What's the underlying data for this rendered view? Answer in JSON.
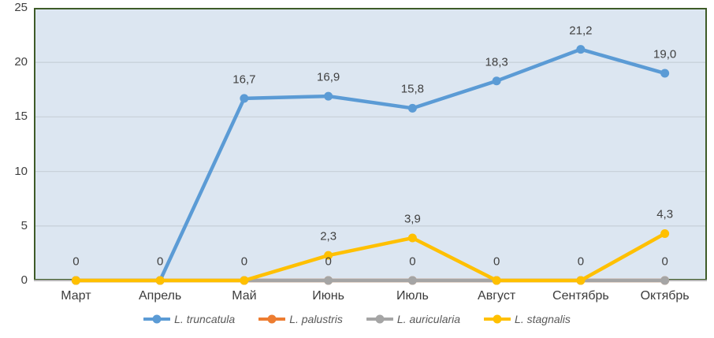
{
  "chart_data": {
    "type": "line",
    "categories": [
      "Март",
      "Апрель",
      "Май",
      "Июнь",
      "Июль",
      "Август",
      "Сентябрь",
      "Октябрь"
    ],
    "series": [
      {
        "name": "L. truncatula",
        "color": "#5b9bd5",
        "values": [
          0,
          0,
          16.7,
          16.9,
          15.8,
          18.3,
          21.2,
          19.0
        ],
        "labels": [
          "",
          "",
          "16,7",
          "16,9",
          "15,8",
          "18,3",
          "21,2",
          "19,0"
        ]
      },
      {
        "name": "L. palustris",
        "color": "#ed7d31",
        "values": [
          0,
          0,
          0,
          0,
          0,
          0,
          0,
          0
        ],
        "labels": [
          "",
          "",
          "",
          "",
          "",
          "",
          "",
          ""
        ]
      },
      {
        "name": "L. auricularia",
        "color": "#a5a5a5",
        "values": [
          0,
          0,
          0,
          0,
          0,
          0,
          0,
          0
        ],
        "labels": [
          "0",
          "0",
          "0",
          "0",
          "0",
          "0",
          "0",
          "0"
        ]
      },
      {
        "name": "L. stagnalis",
        "color": "#ffc000",
        "values": [
          0,
          0,
          0,
          2.3,
          3.9,
          0,
          0,
          4.3
        ],
        "labels": [
          "",
          "",
          "",
          "2,3",
          "3,9",
          "",
          "",
          "4,3"
        ]
      }
    ],
    "title": "",
    "xlabel": "",
    "ylabel": "",
    "ylim": [
      0,
      25
    ],
    "yticks": [
      0,
      5,
      10,
      15,
      20,
      25
    ],
    "ytick_labels": [
      "0",
      "5",
      "10",
      "15",
      "20",
      "25"
    ],
    "grid": true,
    "legend_position": "bottom"
  },
  "colors": {
    "plot_bg": "#dce6f1",
    "plot_border": "#3e5b28",
    "axis_line": "#b6b6b6",
    "gridline": "#c9d2da",
    "tick_text": "#404040",
    "data_label_text": "#404040",
    "legend_text": "#595959"
  }
}
